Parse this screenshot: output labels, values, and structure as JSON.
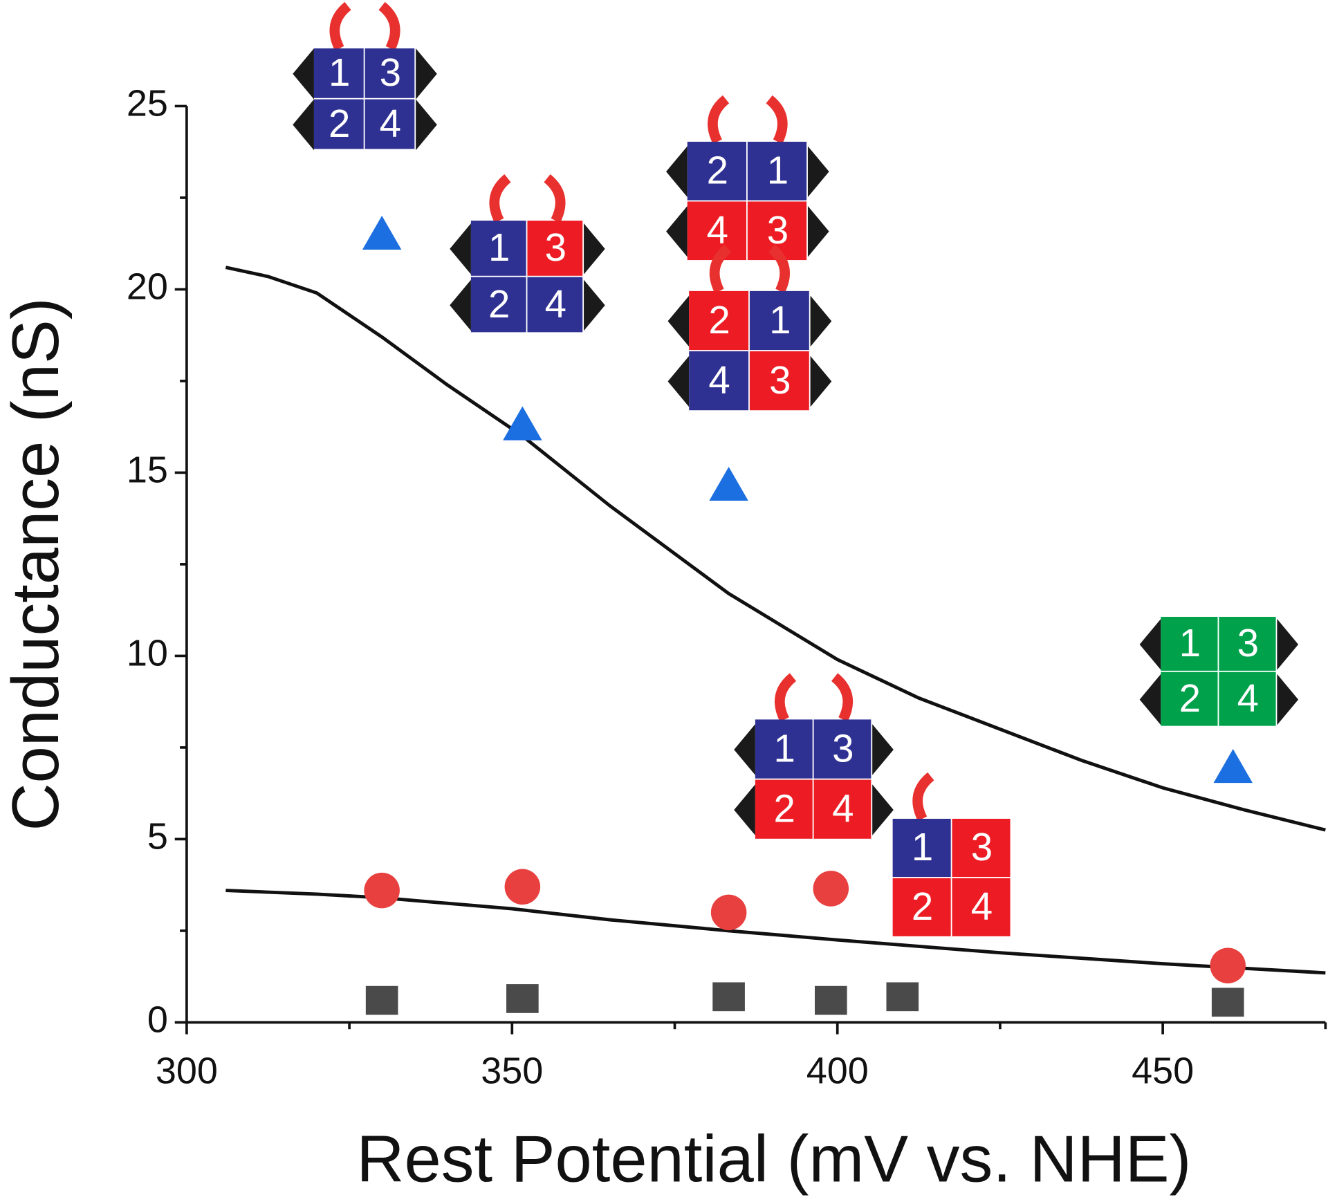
{
  "chart_data": {
    "type": "scatter",
    "x_label": "Rest Potential (mV vs. NHE)",
    "y_label": "Conductance (nS)",
    "xlim": [
      300,
      475
    ],
    "ylim": [
      0,
      25
    ],
    "xticks": [
      300,
      350,
      400,
      450
    ],
    "xminor_ticks": [
      325,
      375,
      425,
      475
    ],
    "yticks": [
      0,
      5,
      10,
      15,
      20,
      25
    ],
    "yminor_ticks": [
      2.5,
      7.5,
      12.5,
      17.5,
      22.5
    ],
    "grid": false,
    "series": [
      {
        "marker": "triangle",
        "color": "#1c6fe0",
        "x": [
          330,
          351.6,
          383.3,
          460.8
        ],
        "values": [
          21.5,
          16.3,
          14.65,
          6.95
        ]
      },
      {
        "marker": "circle",
        "color": "#e8403f",
        "x": [
          330,
          351.6,
          383.3,
          399,
          460
        ],
        "values": [
          3.6,
          3.7,
          3.0,
          3.65,
          1.55
        ]
      },
      {
        "marker": "square",
        "color": "#4a4a4a",
        "x": [
          330,
          351.6,
          383.3,
          399,
          410,
          460
        ],
        "values": [
          0.6,
          0.65,
          0.7,
          0.6,
          0.7,
          0.55
        ]
      }
    ],
    "curves": [
      {
        "color": "#111111",
        "x": [
          306,
          312.5,
          320,
          330,
          340,
          351.6,
          365,
          383.3,
          400,
          412.5,
          425,
          437.5,
          450,
          462.5,
          475
        ],
        "values": [
          20.6,
          20.35,
          19.9,
          18.7,
          17.4,
          16.0,
          14.1,
          11.7,
          9.9,
          8.85,
          8.0,
          7.15,
          6.4,
          5.8,
          5.25
        ]
      },
      {
        "color": "#111111",
        "x": [
          306,
          320,
          330,
          350,
          365,
          383.3,
          400,
          425,
          450,
          475
        ],
        "values": [
          3.6,
          3.5,
          3.4,
          3.1,
          2.8,
          2.5,
          2.25,
          1.9,
          1.6,
          1.35
        ]
      }
    ],
    "annotations": [
      {
        "cells": [
          "1",
          "3",
          "2",
          "4"
        ],
        "colors": [
          "#2e3192",
          "#2e3192",
          "#2e3192",
          "#2e3192"
        ]
      },
      {
        "cells": [
          "1",
          "3",
          "2",
          "4"
        ],
        "colors": [
          "#2e3192",
          "#ed1c24",
          "#2e3192",
          "#2e3192"
        ]
      },
      {
        "cells": [
          "2",
          "1",
          "4",
          "3"
        ],
        "colors": [
          "#2e3192",
          "#2e3192",
          "#ed1c24",
          "#ed1c24"
        ]
      },
      {
        "cells": [
          "2",
          "1",
          "4",
          "3"
        ],
        "colors": [
          "#ed1c24",
          "#2e3192",
          "#2e3192",
          "#ed1c24"
        ]
      },
      {
        "cells": [
          "1",
          "3",
          "2",
          "4"
        ],
        "colors": [
          "#2e3192",
          "#2e3192",
          "#ed1c24",
          "#ed1c24"
        ]
      },
      {
        "cells": [
          "1",
          "3",
          "2",
          "4"
        ],
        "colors": [
          "#2e3192",
          "#ed1c24",
          "#ed1c24",
          "#ed1c24"
        ]
      },
      {
        "cells": [
          "1",
          "3",
          "2",
          "4"
        ],
        "colors": [
          "#00a14b",
          "#00a14b",
          "#00a14b",
          "#00a14b"
        ]
      }
    ]
  }
}
